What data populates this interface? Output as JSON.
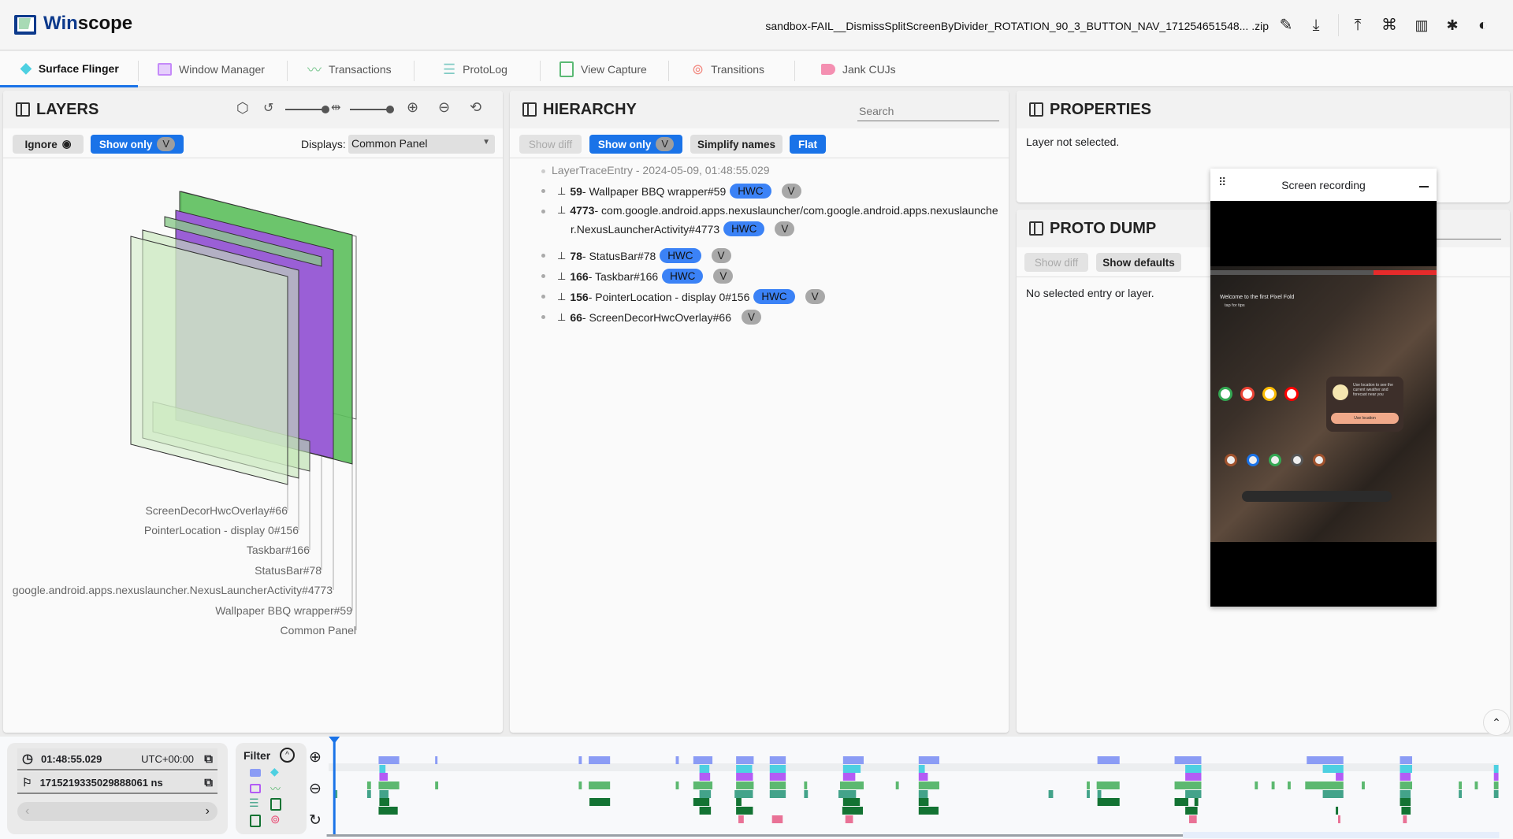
{
  "app": {
    "title_prefix": "Win",
    "title_suffix": "scope",
    "file_name": "sandbox-FAIL__DismissSplitScreenByDivider_ROTATION_90_3_BUTTON_NAV_171254651548... .zip"
  },
  "header_icons": [
    "edit-icon",
    "download-icon",
    "upload-icon",
    "shortcuts-icon",
    "documentation-icon",
    "bug-report-icon",
    "theme-toggle-icon"
  ],
  "tabs": [
    {
      "label": "Surface Flinger",
      "icon": "layers-icon",
      "color": "#4dd0e1",
      "active": true
    },
    {
      "label": "Window Manager",
      "icon": "window-icon",
      "color": "#c58af9"
    },
    {
      "label": "Transactions",
      "icon": "chart-line-icon",
      "color": "#81c995"
    },
    {
      "label": "ProtoLog",
      "icon": "list-icon",
      "color": "#80cbc4"
    },
    {
      "label": "View Capture",
      "icon": "copy-icon",
      "color": "#5bb974"
    },
    {
      "label": "Transitions",
      "icon": "rings-icon",
      "color": "#f28b82"
    },
    {
      "label": "Jank CUJs",
      "icon": "label-icon",
      "color": "#f48fb1"
    }
  ],
  "layers": {
    "title": "LAYERS",
    "ignore_label": "Ignore",
    "show_only_label": "Show only",
    "v_label": "V",
    "displays_label": "Displays:",
    "displays_value": "Common Panel",
    "labels": [
      "ScreenDecorHwcOverlay#66",
      "PointerLocation - display 0#156",
      "Taskbar#166",
      "StatusBar#78",
      "google.android.apps.nexuslauncher.NexusLauncherActivity#4773",
      "Wallpaper BBQ wrapper#59",
      "Common Panel"
    ]
  },
  "hierarchy": {
    "title": "HIERARCHY",
    "search_placeholder": "Search",
    "show_diff_label": "Show diff",
    "show_only_label": "Show only",
    "v_label": "V",
    "simplify_label": "Simplify names",
    "flat_label": "Flat",
    "root": "LayerTraceEntry - 2024-05-09, 01:48:55.029",
    "items": [
      {
        "id": "59",
        "name": " - Wallpaper BBQ wrapper#59",
        "hwc": "HWC",
        "v": "V"
      },
      {
        "id": "4773",
        "name": " - com.google.android.apps.nexuslauncher/com.google.android.apps.nexuslaunche",
        "name2": "r.NexusLauncherActivity#4773",
        "hwc": "HWC",
        "v": "V"
      },
      {
        "id": "78",
        "name": " - StatusBar#78",
        "hwc": "HWC",
        "v": "V"
      },
      {
        "id": "166",
        "name": " - Taskbar#166",
        "hwc": "HWC",
        "v": "V"
      },
      {
        "id": "156",
        "name": " - PointerLocation - display 0#156",
        "hwc": "HWC",
        "v": "V"
      },
      {
        "id": "66",
        "name": " - ScreenDecorHwcOverlay#66",
        "v": "V"
      }
    ]
  },
  "properties": {
    "title": "PROPERTIES",
    "empty": "Layer not selected."
  },
  "proto_dump": {
    "title": "PROTO DUMP",
    "show_diff_label": "Show diff",
    "show_defaults_label": "Show defaults",
    "empty": "No selected entry or layer."
  },
  "screen_recording": {
    "title": "Screen recording",
    "welcome": "Welcome to the first Pixel Fold",
    "tap": "tap for tips",
    "card_text": "Use location to see the current weather and forecast near you",
    "card_button": "Use location"
  },
  "timeline": {
    "time": "01:48:55.029",
    "timezone": "UTC+00:00",
    "ns": "1715219335029888061 ns",
    "filter_label": "Filter"
  },
  "colors": {
    "accent": "#1a73e8",
    "hwc": "#3b82f6",
    "wallpaper": "#5cbf5c",
    "launcher": "#9a5fd6"
  }
}
